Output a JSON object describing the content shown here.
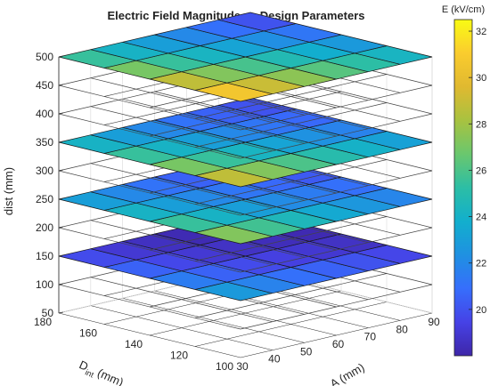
{
  "chart_data": {
    "type": "heatmap",
    "title": "Electric Field Magnitude vs Design Parameters",
    "xlabel": "A (mm)",
    "ylabel_main": "D",
    "ylabel_sub": "int",
    "ylabel_unit": " (mm)",
    "zlabel": "dist (mm)",
    "colorbar_label": "E (kV/cm)",
    "colormap": "parula",
    "clim": [
      18,
      32.5
    ],
    "xlim": [
      30,
      90
    ],
    "ylim": [
      100,
      180
    ],
    "zlim": [
      50,
      500
    ],
    "x_ticks": [
      "30",
      "40",
      "50",
      "60",
      "70",
      "80",
      "90"
    ],
    "y_ticks": [
      "100",
      "120",
      "140",
      "160",
      "180"
    ],
    "z_ticks": [
      "50",
      "100",
      "150",
      "200",
      "250",
      "300",
      "350",
      "400",
      "450",
      "500"
    ],
    "colorbar_ticks": [
      "20",
      "22",
      "24",
      "26",
      "28",
      "30",
      "32"
    ],
    "grid": "on",
    "view": "3-D oblique, slices stacked along dist",
    "slice_grid_A": [
      30,
      40,
      50,
      60,
      70,
      80,
      90
    ],
    "slice_grid_Dint": [
      100,
      120,
      140,
      160,
      180
    ],
    "slices": [
      {
        "dist": 100,
        "type": "outline",
        "E": []
      },
      {
        "dist": 150,
        "type": "filled",
        "E": [
          [
            24.0,
            23.0,
            22.0,
            21.5,
            21.0,
            20.5,
            20.0
          ],
          [
            22.5,
            21.5,
            20.5,
            20.0,
            19.5,
            19.0,
            18.8
          ],
          [
            21.5,
            20.5,
            19.5,
            19.0,
            18.8,
            18.5,
            18.3
          ],
          [
            20.5,
            19.5,
            19.0,
            18.5,
            18.3,
            18.1,
            18.0
          ],
          [
            20.0,
            19.0,
            18.5,
            18.2,
            18.0,
            18.0,
            18.0
          ]
        ]
      },
      {
        "dist": 200,
        "type": "outline",
        "E": []
      },
      {
        "dist": 250,
        "type": "filled",
        "E": [
          [
            29.0,
            27.5,
            26.0,
            25.0,
            24.0,
            23.0,
            22.0
          ],
          [
            27.0,
            25.5,
            24.0,
            23.0,
            22.0,
            21.5,
            21.0
          ],
          [
            25.5,
            24.0,
            23.0,
            22.0,
            21.5,
            21.0,
            20.5
          ],
          [
            24.0,
            23.0,
            22.0,
            21.0,
            20.5,
            20.0,
            19.5
          ],
          [
            23.0,
            22.0,
            21.0,
            20.5,
            20.0,
            19.5,
            19.3
          ]
        ]
      },
      {
        "dist": 300,
        "type": "outline",
        "E": []
      },
      {
        "dist": 350,
        "type": "filled",
        "E": [
          [
            30.5,
            29.0,
            27.5,
            26.5,
            25.5,
            24.5,
            23.5
          ],
          [
            28.5,
            27.0,
            25.5,
            24.5,
            23.5,
            22.5,
            22.0
          ],
          [
            27.0,
            25.5,
            24.0,
            23.0,
            22.0,
            21.5,
            21.0
          ],
          [
            25.5,
            24.0,
            23.0,
            22.0,
            21.0,
            20.5,
            20.0
          ],
          [
            24.0,
            23.0,
            22.0,
            21.0,
            20.5,
            20.0,
            19.5
          ]
        ]
      },
      {
        "dist": 400,
        "type": "outline",
        "E": []
      },
      {
        "dist": 450,
        "type": "outline",
        "E": []
      },
      {
        "dist": 500,
        "type": "filled",
        "E": [
          [
            32.5,
            30.5,
            29.0,
            27.5,
            26.5,
            25.5,
            24.5
          ],
          [
            30.5,
            29.0,
            27.5,
            26.0,
            25.0,
            24.0,
            23.0
          ],
          [
            28.5,
            27.0,
            25.5,
            24.5,
            23.5,
            22.5,
            21.5
          ],
          [
            27.0,
            25.5,
            24.0,
            23.0,
            22.0,
            21.0,
            20.0
          ],
          [
            25.5,
            24.0,
            23.0,
            22.0,
            21.0,
            20.0,
            19.0
          ]
        ]
      }
    ]
  }
}
